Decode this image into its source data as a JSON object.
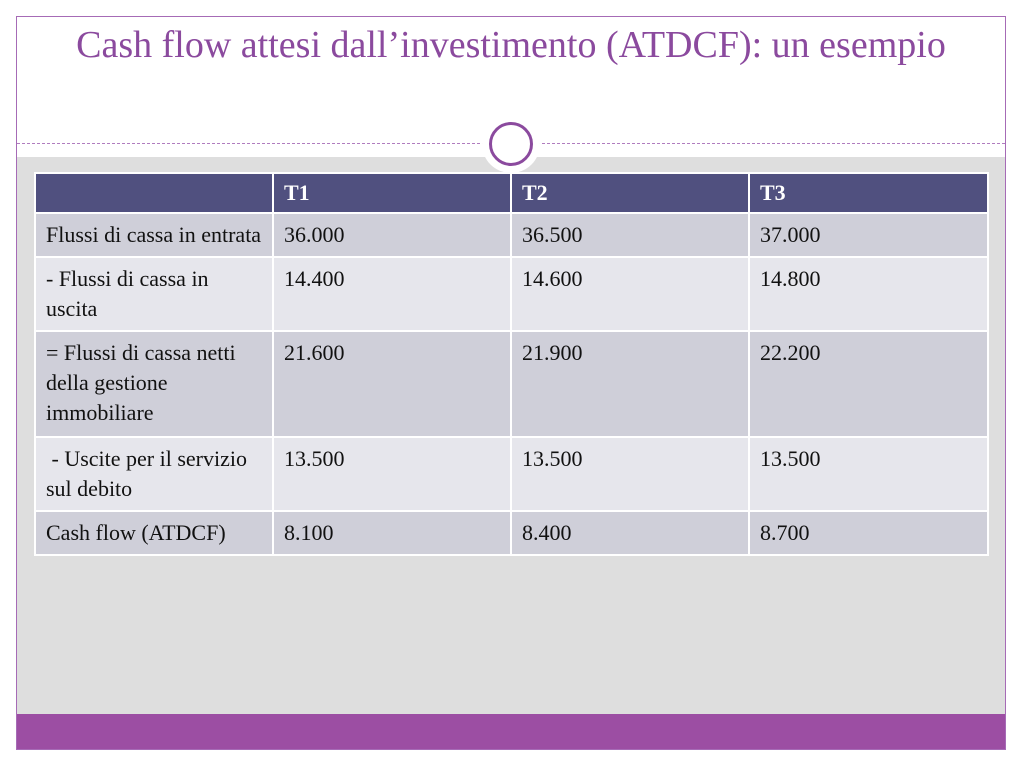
{
  "slide": {
    "title": "Cash flow attesi dall’investimento (ATDCF): un esempio"
  },
  "table": {
    "headers": [
      "",
      "T1",
      "T2",
      "T3"
    ],
    "rows": [
      {
        "label": "Flussi di cassa in entrata",
        "values": [
          "36.000",
          "36.500",
          "37.000"
        ]
      },
      {
        "label": "- Flussi di cassa in uscita",
        "values": [
          "14.400",
          "14.600",
          "14.800"
        ]
      },
      {
        "label": "= Flussi di cassa netti della gestione immobiliare",
        "values": [
          "21.600",
          "21.900",
          "22.200"
        ]
      },
      {
        "label": " - Uscite per il servizio sul debito",
        "values": [
          "13.500",
          "13.500",
          "13.500"
        ]
      },
      {
        "label": "Cash flow (ATDCF)",
        "values": [
          "8.100",
          "8.400",
          "8.700"
        ]
      }
    ]
  },
  "colors": {
    "title": "#8b4a9e",
    "header_bg": "#50507f",
    "row_dark": "#cfcfd9",
    "row_light": "#e6e6ec",
    "bottom_bar": "#9c4ea3",
    "body_bg": "#dedede"
  }
}
